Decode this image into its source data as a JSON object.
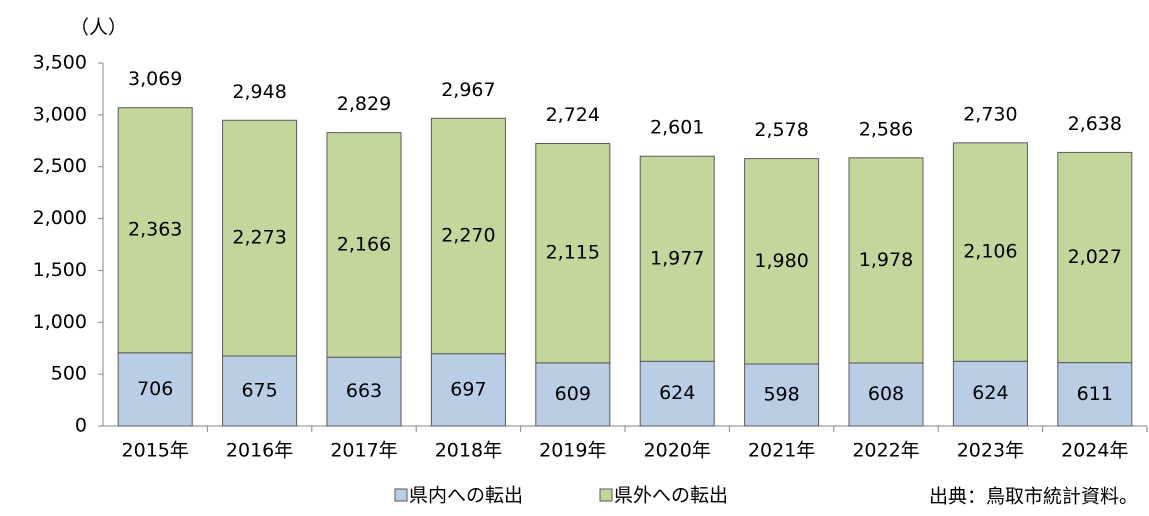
{
  "chart_data": {
    "type": "stacked_bar",
    "y_label": "（人）",
    "source": "出典：鳥取市統計資料。",
    "categories": [
      "2015年",
      "2016年",
      "2017年",
      "2018年",
      "2019年",
      "2020年",
      "2021年",
      "2022年",
      "2023年",
      "2024年"
    ],
    "series": [
      {
        "name": "県内への転出",
        "color": "#b9cde5",
        "values": [
          706,
          675,
          663,
          697,
          609,
          624,
          598,
          608,
          624,
          611
        ]
      },
      {
        "name": "県外への転出",
        "color": "#c3d69b",
        "values": [
          2363,
          2273,
          2166,
          2270,
          2115,
          1977,
          1980,
          1978,
          2106,
          2027
        ],
        "value_labels": [
          "2,363",
          "2,273",
          "2,166",
          "2,270",
          "2,115",
          "1,977",
          "1,980",
          "1,978",
          "2,106",
          "2,027"
        ]
      }
    ],
    "totals": [
      3069,
      2948,
      2829,
      2967,
      2724,
      2601,
      2578,
      2586,
      2730,
      2638
    ],
    "total_labels": [
      "3,069",
      "2,948",
      "2,829",
      "2,967",
      "2,724",
      "2,601",
      "2,578",
      "2,586",
      "2,730",
      "2,638"
    ],
    "ylim": [
      0,
      3500
    ],
    "yticks": [
      0,
      500,
      {
        "value": 1000,
        "label": "1,000"
      },
      {
        "value": 1500,
        "label": "1,500"
      },
      {
        "value": 2000,
        "label": "2,000"
      },
      {
        "value": 2500,
        "label": "2,500"
      },
      {
        "value": 3000,
        "label": "3,000"
      },
      {
        "value": 3500,
        "label": "3,500"
      }
    ],
    "legend": "bottom"
  }
}
